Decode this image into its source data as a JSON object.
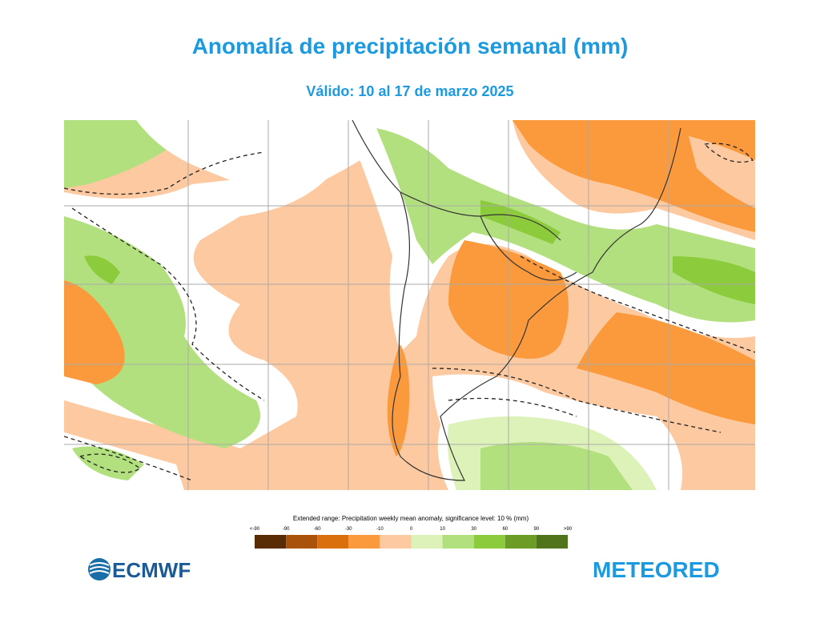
{
  "header": {
    "title": "Anomalía de precipitación semanal (mm)",
    "subtitle": "Válido: 10 al 17 de marzo 2025"
  },
  "legend": {
    "title": "Extended range: Precipitation weekly mean anomaly, significance level: 10 % (mm)",
    "labels": [
      "<-90",
      "-90",
      "-60",
      "-30",
      "-10",
      "0",
      "10",
      "30",
      "60",
      "90",
      ">90"
    ],
    "colors": [
      "#5a2c06",
      "#a8520c",
      "#d9700d",
      "#fb9a3c",
      "#fdc9a0",
      "#ddf2b8",
      "#b3e07e",
      "#8ccb3c",
      "#6c9c26",
      "#4f741b"
    ]
  },
  "logos": {
    "left": "ECMWF",
    "right": "METEORED"
  }
}
